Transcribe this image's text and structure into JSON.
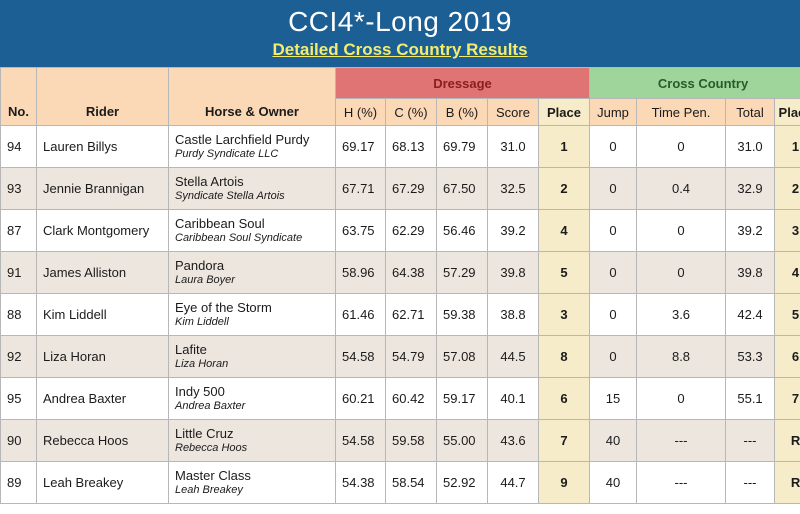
{
  "header": {
    "title": "CCI4*-Long 2019",
    "subtitle": "Detailed Cross Country Results"
  },
  "columns": {
    "no": "No.",
    "rider": "Rider",
    "horse_owner": "Horse & Owner",
    "dressage_group": "Dressage",
    "cross_country_group": "Cross Country",
    "h": "H (%)",
    "c": "C (%)",
    "b": "B (%)",
    "score": "Score",
    "place": "Place",
    "jump": "Jump",
    "time_pen": "Time Pen.",
    "total": "Total",
    "xc_place": "Place"
  },
  "rows": [
    {
      "no": "94",
      "rider": "Lauren Billys",
      "horse": "Castle Larchfield Purdy",
      "owner": "Purdy Syndicate LLC",
      "h": "69.17",
      "c": "68.13",
      "b": "69.79",
      "score": "31.0",
      "place": "1",
      "jump": "0",
      "time_pen": "0",
      "total": "31.0",
      "xc_place": "1"
    },
    {
      "no": "93",
      "rider": "Jennie Brannigan",
      "horse": "Stella Artois",
      "owner": "Syndicate Stella Artois",
      "h": "67.71",
      "c": "67.29",
      "b": "67.50",
      "score": "32.5",
      "place": "2",
      "jump": "0",
      "time_pen": "0.4",
      "total": "32.9",
      "xc_place": "2"
    },
    {
      "no": "87",
      "rider": "Clark Montgomery",
      "horse": "Caribbean Soul",
      "owner": "Caribbean Soul Syndicate",
      "h": "63.75",
      "c": "62.29",
      "b": "56.46",
      "score": "39.2",
      "place": "4",
      "jump": "0",
      "time_pen": "0",
      "total": "39.2",
      "xc_place": "3"
    },
    {
      "no": "91",
      "rider": "James Alliston",
      "horse": "Pandora",
      "owner": "Laura Boyer",
      "h": "58.96",
      "c": "64.38",
      "b": "57.29",
      "score": "39.8",
      "place": "5",
      "jump": "0",
      "time_pen": "0",
      "total": "39.8",
      "xc_place": "4"
    },
    {
      "no": "88",
      "rider": "Kim Liddell",
      "horse": "Eye of the Storm",
      "owner": "Kim Liddell",
      "h": "61.46",
      "c": "62.71",
      "b": "59.38",
      "score": "38.8",
      "place": "3",
      "jump": "0",
      "time_pen": "3.6",
      "total": "42.4",
      "xc_place": "5"
    },
    {
      "no": "92",
      "rider": "Liza Horan",
      "horse": "Lafite",
      "owner": "Liza Horan",
      "h": "54.58",
      "c": "54.79",
      "b": "57.08",
      "score": "44.5",
      "place": "8",
      "jump": "0",
      "time_pen": "8.8",
      "total": "53.3",
      "xc_place": "6"
    },
    {
      "no": "95",
      "rider": "Andrea Baxter",
      "horse": "Indy 500",
      "owner": "Andrea Baxter",
      "h": "60.21",
      "c": "60.42",
      "b": "59.17",
      "score": "40.1",
      "place": "6",
      "jump": "15",
      "time_pen": "0",
      "total": "55.1",
      "xc_place": "7"
    },
    {
      "no": "90",
      "rider": "Rebecca Hoos",
      "horse": "Little Cruz",
      "owner": "Rebecca Hoos",
      "h": "54.58",
      "c": "59.58",
      "b": "55.00",
      "score": "43.6",
      "place": "7",
      "jump": "40",
      "time_pen": "---",
      "total": "---",
      "xc_place": "R"
    },
    {
      "no": "89",
      "rider": "Leah Breakey",
      "horse": "Master Class",
      "owner": "Leah Breakey",
      "h": "54.38",
      "c": "58.54",
      "b": "52.92",
      "score": "44.7",
      "place": "9",
      "jump": "40",
      "time_pen": "---",
      "total": "---",
      "xc_place": "R"
    }
  ]
}
